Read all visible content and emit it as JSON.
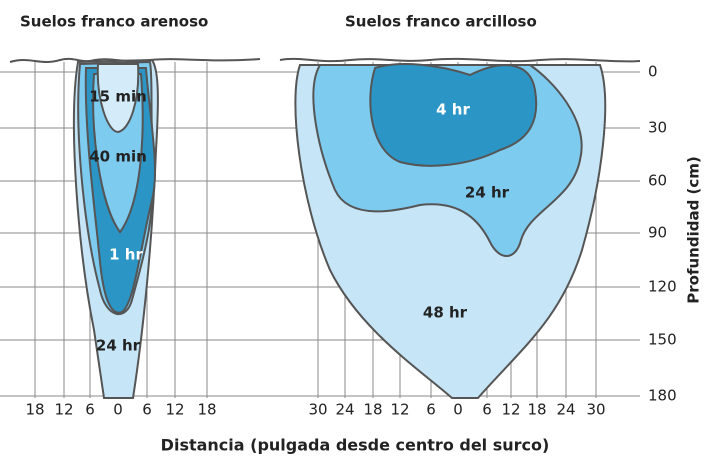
{
  "titles": [
    "Suelos franco arenoso",
    "Suelos franco arcilloso"
  ],
  "x_axis": {
    "title": "Distancia (pulgada desde centro del surco)",
    "left_ticks": [
      18,
      12,
      6,
      0,
      6,
      12,
      18
    ],
    "right_ticks": [
      30,
      24,
      18,
      12,
      6,
      0,
      6,
      12,
      18,
      24,
      30
    ]
  },
  "y_axis": {
    "title": "Profundidad (cm)",
    "ticks": [
      0,
      30,
      60,
      90,
      120,
      150,
      180
    ]
  },
  "left_zones": [
    "15 min",
    "40 min",
    "1 hr",
    "24 hr"
  ],
  "right_zones": [
    "4 hr",
    "24 hr",
    "48 hr"
  ]
}
